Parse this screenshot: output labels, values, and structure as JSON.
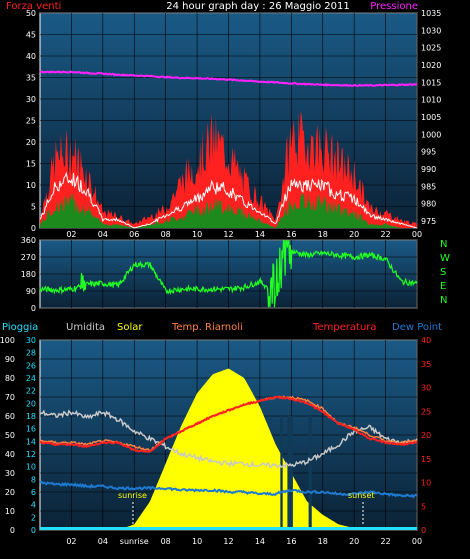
{
  "colors": {
    "background": "#000000",
    "plot_bg_top": "#1a5a86",
    "plot_bg_bottom": "#0b2236",
    "grid": "#000000",
    "wind_gust": "#ff2020",
    "wind_avg": "#ffffff",
    "wind_low": "#1d8a1d",
    "pressure": "#ff22ff",
    "direction": "#22ff22",
    "rain": "#22e0ff",
    "humidity": "#c8c8c8",
    "solar": "#ffff00",
    "apparent_temp": "#ff8040",
    "temperature": "#ff2020",
    "dew_point": "#1e7ad0",
    "axis_text": "#ffffff"
  },
  "header": {
    "title": "24 hour graph day : 26 Maggio 2011",
    "left_label": "Forza venti",
    "right_label": "Pressione"
  },
  "compass": [
    "N",
    "W",
    "S",
    "E",
    "N"
  ],
  "legend": {
    "rain": "Pioggia",
    "humidity": "Umidita",
    "solar": "Solar",
    "apparent": "Temp. Riarnoli",
    "temperature": "Temperatura",
    "dew": "Dew Point"
  },
  "annotations": {
    "sunrise": "sunrise",
    "sunset": "sunset",
    "sunrise_axis": "sunrise"
  },
  "chart_data": [
    {
      "type": "area",
      "title": "24 hour graph day : 26 Maggio 2011",
      "x_ticks": [
        "02",
        "04",
        "06",
        "08",
        "10",
        "12",
        "14",
        "16",
        "18",
        "20",
        "22",
        "00"
      ],
      "y_left": {
        "label": "Forza venti",
        "ticks": [
          0,
          5,
          10,
          15,
          20,
          25,
          30,
          35,
          40,
          45,
          50
        ],
        "range": [
          0,
          50
        ]
      },
      "y_right": {
        "label": "Pressione",
        "ticks": [
          975,
          980,
          985,
          990,
          995,
          1000,
          1005,
          1010,
          1015,
          1020,
          1025,
          1030,
          1035
        ],
        "range": [
          973,
          1035
        ]
      },
      "x_hours": [
        0,
        1,
        2,
        3,
        4,
        5,
        6,
        7,
        8,
        9,
        10,
        11,
        12,
        13,
        14,
        15,
        16,
        17,
        18,
        19,
        20,
        21,
        22,
        23,
        24
      ],
      "series": [
        {
          "name": "gust",
          "values": [
            3,
            18,
            20,
            14,
            4,
            3,
            1,
            3,
            5,
            12,
            17,
            23,
            19,
            12,
            7,
            2,
            24,
            22,
            21,
            17,
            14,
            5,
            4,
            2,
            1
          ]
        },
        {
          "name": "avg",
          "values": [
            2,
            10,
            12,
            9,
            2,
            2,
            0,
            1,
            3,
            5,
            7,
            10,
            9,
            6,
            4,
            1,
            11,
            10,
            10,
            8,
            7,
            3,
            2,
            1,
            0
          ]
        },
        {
          "name": "low",
          "values": [
            1,
            6,
            7,
            5,
            1,
            1,
            0,
            1,
            2,
            3,
            5,
            6,
            6,
            4,
            2,
            0,
            7,
            7,
            7,
            5,
            4,
            1,
            1,
            0,
            0
          ]
        },
        {
          "name": "pressure",
          "values": [
            1018,
            1018,
            1018,
            1017.7,
            1017.5,
            1017.2,
            1017,
            1016.8,
            1016.5,
            1016.3,
            1016.2,
            1016,
            1015.8,
            1015.5,
            1015.2,
            1015,
            1014.7,
            1014.5,
            1014.3,
            1014.2,
            1014.1,
            1014.1,
            1014.2,
            1014.3,
            1014.4
          ]
        }
      ]
    },
    {
      "type": "line",
      "y_ticks": [
        0,
        90,
        180,
        270,
        360
      ],
      "range": [
        0,
        360
      ],
      "x_hours": [
        0,
        1,
        2,
        3,
        4,
        5,
        6,
        7,
        8,
        9,
        10,
        11,
        12,
        13,
        14,
        15,
        15.5,
        16,
        17,
        18,
        19,
        20,
        21,
        22,
        23,
        24
      ],
      "series": [
        {
          "name": "direction",
          "values": [
            100,
            95,
            100,
            125,
            130,
            120,
            230,
            230,
            90,
            100,
            100,
            100,
            100,
            110,
            140,
            80,
            320,
            300,
            280,
            290,
            280,
            270,
            280,
            260,
            140,
            130
          ]
        }
      ]
    },
    {
      "type": "area",
      "x_ticks": [
        "02",
        "04",
        "sunrise",
        "08",
        "10",
        "12",
        "14",
        "16",
        "18",
        "20",
        "22",
        "00"
      ],
      "y_left_outer": {
        "ticks": [
          0,
          10,
          20,
          30,
          40,
          50,
          60,
          70,
          80,
          90,
          100
        ],
        "range": [
          0,
          100
        ]
      },
      "y_left_inner": {
        "ticks": [
          0,
          2,
          4,
          6,
          8,
          10,
          12,
          14,
          16,
          18,
          20,
          22,
          24,
          26,
          28,
          30
        ],
        "range": [
          0,
          30
        ]
      },
      "y_right": {
        "ticks": [
          0,
          5,
          10,
          15,
          20,
          25,
          30,
          35,
          40
        ],
        "range": [
          0,
          40
        ]
      },
      "x_hours": [
        0,
        1,
        2,
        3,
        4,
        5,
        6,
        7,
        8,
        9,
        10,
        11,
        12,
        13,
        14,
        15,
        16,
        17,
        18,
        19,
        20,
        21,
        22,
        23,
        24
      ],
      "series": [
        {
          "name": "humidity",
          "values": [
            62,
            60,
            62,
            59,
            62,
            58,
            52,
            48,
            44,
            40,
            38,
            36,
            35,
            35,
            34,
            34,
            34,
            36,
            40,
            45,
            52,
            54,
            48,
            46,
            47
          ]
        },
        {
          "name": "solar",
          "values": [
            0,
            0,
            0,
            0,
            0,
            0,
            3,
            15,
            35,
            55,
            72,
            82,
            85,
            80,
            65,
            45,
            30,
            15,
            8,
            3,
            1,
            0,
            0,
            0,
            0
          ]
        },
        {
          "name": "apparent",
          "values": [
            47,
            46,
            46,
            45,
            47,
            46,
            44,
            42,
            48,
            52,
            56,
            60,
            63,
            66,
            68,
            70,
            70,
            68,
            64,
            56,
            54,
            50,
            47,
            46,
            47
          ]
        },
        {
          "name": "temperature",
          "values": [
            46,
            45,
            45,
            44,
            46,
            46,
            42,
            41,
            48,
            52,
            56,
            60,
            63,
            66,
            68,
            70,
            69,
            67,
            62,
            56,
            53,
            48,
            46,
            45,
            46
          ]
        },
        {
          "name": "dew",
          "values": [
            25,
            24,
            24,
            23,
            23,
            22,
            22,
            22,
            22,
            21,
            21,
            21,
            20,
            20,
            19,
            19,
            21,
            20,
            20,
            19,
            19,
            20,
            19,
            18,
            18
          ]
        },
        {
          "name": "rain",
          "values": [
            0,
            0,
            0,
            0,
            0,
            0,
            0,
            0,
            0,
            0,
            0,
            0,
            0,
            0,
            0,
            0,
            0,
            0,
            0,
            0,
            0,
            0,
            0,
            0,
            0
          ]
        }
      ]
    }
  ]
}
